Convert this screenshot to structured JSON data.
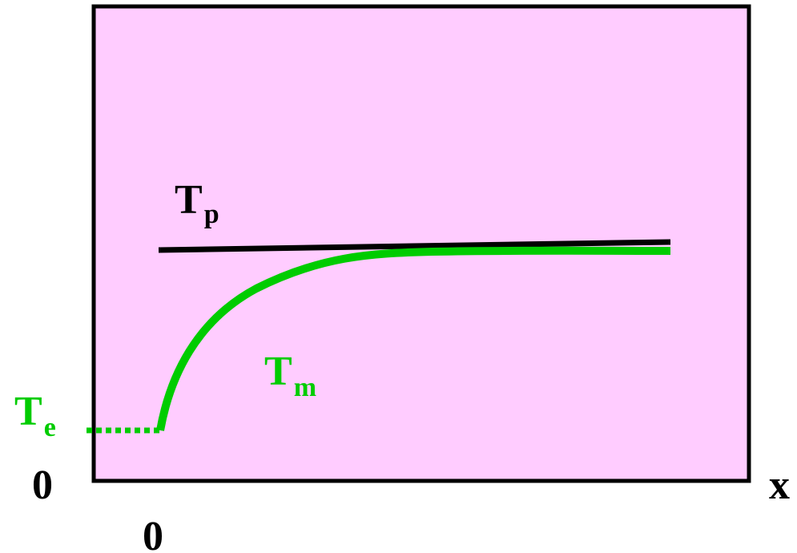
{
  "diagram": {
    "colors": {
      "panel_fill": "#ffccff",
      "frame": "#000000",
      "plateau_line": "#000000",
      "curve": "#00cc00"
    },
    "labels": {
      "tp": {
        "main": "T",
        "sub": "p"
      },
      "tm": {
        "main": "T",
        "sub": "m"
      },
      "te": {
        "main": "T",
        "sub": "e"
      },
      "origin_y": "0",
      "origin_x": "0",
      "x_axis": "x"
    }
  }
}
